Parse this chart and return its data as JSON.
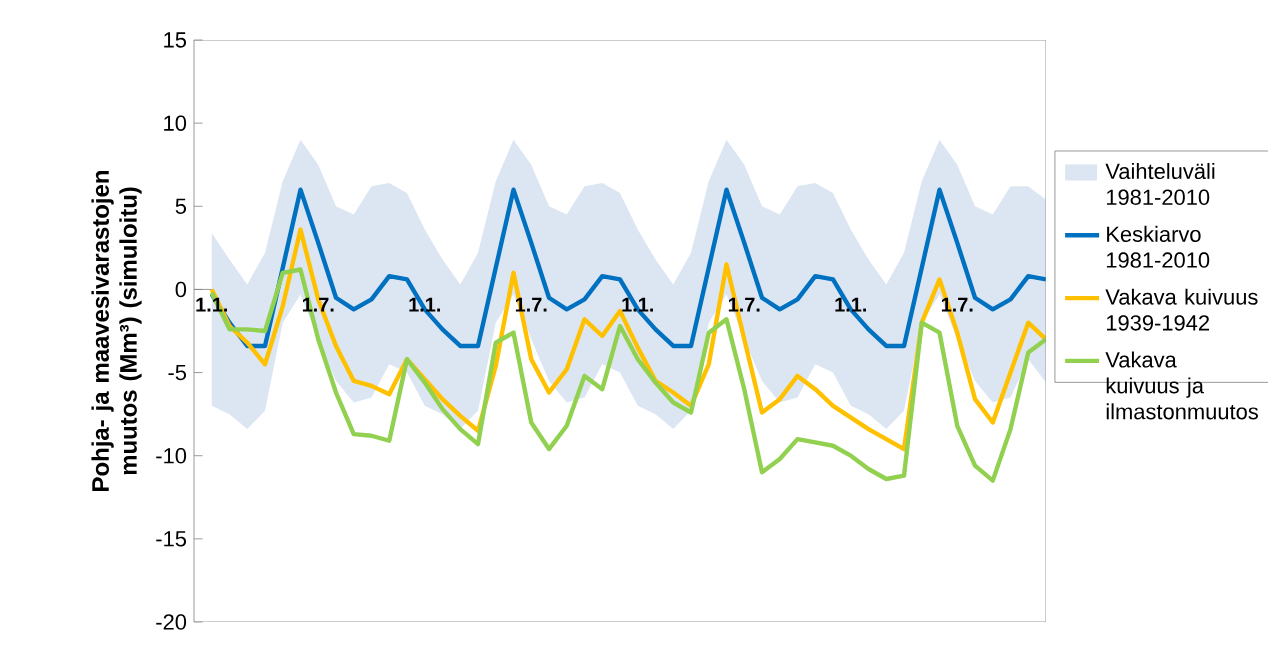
{
  "chart_data": {
    "type": "line",
    "ylabel": "Pohja- ja maavesivarastojen muutos (Mm³) (simuloitu)",
    "categories": [
      "1.1.",
      null,
      null,
      null,
      null,
      null,
      "1.7.",
      null,
      null,
      null,
      null,
      null,
      "1.1.",
      null,
      null,
      null,
      null,
      null,
      "1.7.",
      null,
      null,
      null,
      null,
      null,
      "1.1.",
      null,
      null,
      null,
      null,
      null,
      "1.7.",
      null,
      null,
      null,
      null,
      null,
      "1.1.",
      null,
      null,
      null,
      null,
      null,
      "1.7.",
      null,
      null,
      null,
      null,
      null
    ],
    "ylim": [
      -20,
      15
    ],
    "yticks": [
      -20,
      -15,
      -10,
      -5,
      0,
      5,
      10,
      15
    ],
    "grid": false,
    "legend": "right",
    "marker": "none",
    "line_style": "solid",
    "series": [
      {
        "name": "Vaihteluväli 1981-2010",
        "type": "area",
        "color": "#dce6f2",
        "values": [
          null,
          null,
          null,
          null,
          null,
          null,
          null,
          null,
          null,
          null,
          null,
          null,
          null,
          null,
          null,
          null,
          null,
          null,
          null,
          null,
          null,
          null,
          null,
          null,
          null,
          null,
          null,
          null,
          null,
          null,
          null,
          null,
          null,
          null,
          null,
          null,
          null,
          null,
          null,
          null,
          null,
          null,
          null,
          null,
          null,
          null,
          null,
          null
        ],
        "lower": [
          -7.0,
          -7.5,
          -8.4,
          -7.3,
          -2.0,
          -0.3,
          -3.0,
          -5.5,
          -6.8,
          -6.5,
          -4.5,
          -5.0,
          -7.0,
          -7.5,
          -8.4,
          -7.3,
          -2.0,
          -0.3,
          -3.0,
          -5.5,
          -6.8,
          -6.5,
          -4.5,
          -5.0,
          -7.0,
          -7.5,
          -8.4,
          -7.3,
          -2.0,
          -0.3,
          -3.0,
          -5.5,
          -6.8,
          -6.5,
          -4.5,
          -5.0,
          -7.0,
          -7.5,
          -8.4,
          -7.3,
          -2.0,
          -0.3,
          -3.0,
          -5.5,
          -6.8,
          -6.5,
          -4.2,
          -5.6
        ],
        "upper": [
          3.4,
          1.8,
          0.3,
          2.2,
          6.5,
          9.0,
          7.5,
          5.0,
          4.5,
          6.2,
          6.4,
          5.8,
          3.6,
          1.8,
          0.3,
          2.2,
          6.5,
          9.0,
          7.5,
          5.0,
          4.5,
          6.2,
          6.4,
          5.8,
          3.6,
          1.8,
          0.3,
          2.2,
          6.5,
          9.0,
          7.5,
          5.0,
          4.5,
          6.2,
          6.4,
          5.8,
          3.6,
          1.8,
          0.3,
          2.2,
          6.5,
          9.0,
          7.5,
          5.0,
          4.5,
          6.2,
          6.2,
          5.4
        ]
      },
      {
        "name": "Keskiarvo 1981-2010",
        "color": "#0070c0",
        "values": [
          -0.3,
          -2.0,
          -3.4,
          -3.4,
          1.3,
          6.0,
          2.8,
          -0.5,
          -1.2,
          -0.6,
          0.8,
          0.6,
          -1.2,
          -2.4,
          -3.4,
          -3.4,
          1.3,
          6.0,
          2.8,
          -0.5,
          -1.2,
          -0.6,
          0.8,
          0.6,
          -1.2,
          -2.4,
          -3.4,
          -3.4,
          1.3,
          6.0,
          2.8,
          -0.5,
          -1.2,
          -0.6,
          0.8,
          0.6,
          -1.2,
          -2.4,
          -3.4,
          -3.4,
          1.3,
          6.0,
          2.8,
          -0.5,
          -1.2,
          -0.6,
          0.8,
          0.6
        ]
      },
      {
        "name": "Vakava kuivuus 1939-1942",
        "color": "#ffc000",
        "values": [
          0,
          -2.2,
          -3.2,
          -4.5,
          -1.0,
          3.6,
          -0.6,
          -3.4,
          -5.5,
          -5.8,
          -6.3,
          -4.2,
          -5.4,
          -6.6,
          -7.6,
          -8.5,
          -4.6,
          1.0,
          -4.2,
          -6.2,
          -4.8,
          -1.8,
          -2.8,
          -1.3,
          -3.5,
          -5.5,
          -6.2,
          -7.0,
          -4.5,
          1.5,
          -3.0,
          -7.4,
          -6.6,
          -5.2,
          -6.0,
          -7.0,
          -7.7,
          -8.4,
          -9.0,
          -9.6,
          -2.0,
          0.6,
          -2.6,
          -6.6,
          -8.0,
          -5.0,
          -2.0,
          -3.0
        ]
      },
      {
        "name": "Vakava kuivuus ja ilmastonmuutos",
        "color": "#92d050",
        "values": [
          -0.2,
          -2.4,
          -2.4,
          -2.5,
          1.0,
          1.2,
          -3.0,
          -6.2,
          -8.7,
          -8.8,
          -9.1,
          -4.2,
          -5.6,
          -7.2,
          -8.4,
          -9.3,
          -3.2,
          -2.6,
          -8.0,
          -9.6,
          -8.2,
          -5.2,
          -6.0,
          -2.2,
          -4.2,
          -5.6,
          -6.8,
          -7.4,
          -2.6,
          -1.8,
          -6.0,
          -11.0,
          -10.2,
          -9.0,
          -9.2,
          -9.4,
          -10.0,
          -10.8,
          -11.4,
          -11.2,
          -2.0,
          -2.6,
          -8.2,
          -10.6,
          -11.5,
          -8.4,
          -3.8,
          -3.0
        ]
      }
    ]
  }
}
